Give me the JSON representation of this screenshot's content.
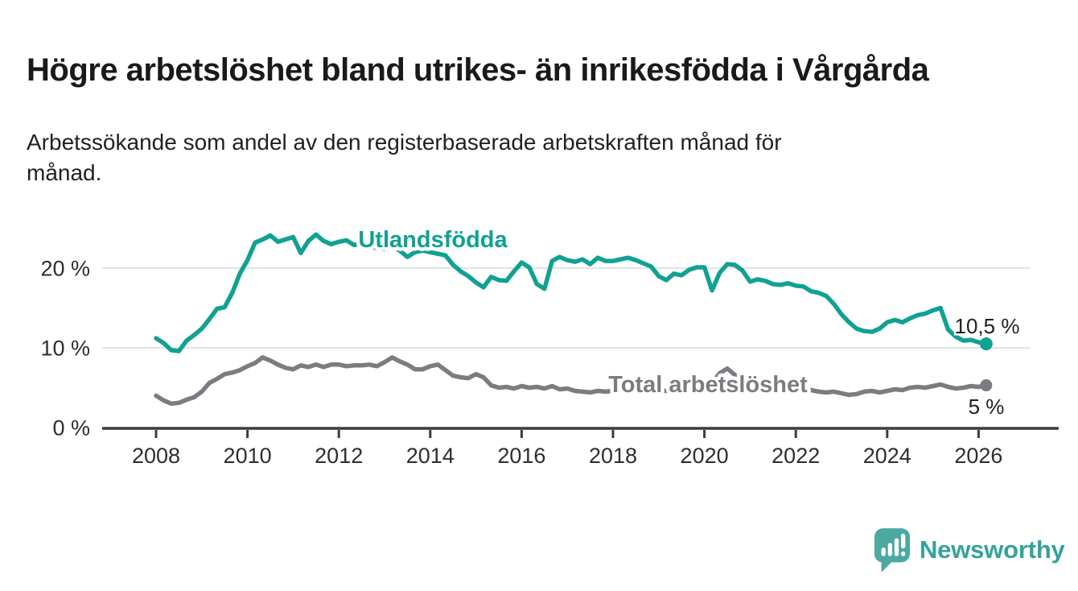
{
  "header": {
    "title": "Högre arbetslöshet bland utrikes- än inrikesfödda i Vårgårda",
    "subtitle": "Arbetssökande som andel av den registerbaserade arbetskraften månad för\nmånad."
  },
  "chart_data": {
    "type": "line",
    "title": "Högre arbetslöshet bland utrikes- än inrikesfödda i Vårgårda",
    "subtitle": "Arbetssökande som andel av den registerbaserade arbetskraften månad för månad.",
    "unit": "%",
    "grid": "horizontal",
    "legend_position": "inline-labels",
    "x_axis": {
      "tick_values": [
        2008,
        2010,
        2012,
        2014,
        2016,
        2018,
        2020,
        2022,
        2024,
        2026
      ],
      "tick_labels": [
        "2008",
        "2010",
        "2012",
        "2014",
        "2016",
        "2018",
        "2020",
        "2022",
        "2024",
        "2026"
      ],
      "range": [
        2006.8,
        2027.8
      ]
    },
    "y_axis": {
      "ticks": [
        {
          "value": 20,
          "label": "20 %"
        },
        {
          "value": 10,
          "label": "10 %"
        },
        {
          "value": 0,
          "label": "0 %"
        }
      ],
      "range": [
        0,
        26
      ]
    },
    "sampling": {
      "start_year": 2008,
      "start_month": 1,
      "interval_months": 2
    },
    "series": [
      {
        "name": "Utlandsfödda",
        "color": "#11a192",
        "end_label": "10,5 %",
        "end_value": 10.5,
        "values": [
          11.2,
          10.6,
          9.7,
          9.6,
          10.9,
          11.6,
          12.4,
          13.6,
          14.9,
          15.1,
          16.9,
          19.3,
          21.0,
          23.2,
          23.6,
          24.1,
          23.3,
          23.6,
          23.9,
          21.9,
          23.4,
          24.2,
          23.4,
          23.0,
          23.3,
          23.5,
          22.9,
          23.1,
          22.8,
          22.5,
          22.4,
          22.7,
          22.2,
          21.4,
          22.0,
          22.2,
          22.0,
          21.8,
          21.6,
          20.4,
          19.6,
          19.0,
          18.2,
          17.6,
          18.9,
          18.5,
          18.4,
          19.6,
          20.7,
          20.1,
          18.0,
          17.4,
          20.9,
          21.4,
          21.0,
          20.8,
          21.1,
          20.5,
          21.3,
          20.9,
          20.9,
          21.1,
          21.3,
          21.0,
          20.6,
          20.2,
          19.0,
          18.5,
          19.3,
          19.1,
          19.8,
          20.1,
          20.1,
          17.2,
          19.4,
          20.5,
          20.4,
          19.7,
          18.3,
          18.6,
          18.4,
          18.0,
          17.9,
          18.1,
          17.8,
          17.7,
          17.1,
          16.9,
          16.5,
          15.5,
          14.2,
          13.2,
          12.4,
          12.1,
          12.0,
          12.4,
          13.2,
          13.5,
          13.2,
          13.7,
          14.1,
          14.3,
          14.7,
          15.0,
          12.3,
          11.4,
          10.9,
          11.0,
          10.7,
          10.5
        ]
      },
      {
        "name": "Total arbetslöshet",
        "color": "#7d7b81",
        "end_label": "5 %",
        "end_value": 5.3,
        "values": [
          4.0,
          3.4,
          3.0,
          3.1,
          3.5,
          3.8,
          4.5,
          5.6,
          6.1,
          6.7,
          6.9,
          7.2,
          7.7,
          8.1,
          8.8,
          8.4,
          7.9,
          7.5,
          7.3,
          7.8,
          7.6,
          7.9,
          7.6,
          7.9,
          7.9,
          7.7,
          7.8,
          7.8,
          7.9,
          7.7,
          8.2,
          8.8,
          8.3,
          7.9,
          7.3,
          7.3,
          7.7,
          7.9,
          7.2,
          6.5,
          6.3,
          6.2,
          6.7,
          6.3,
          5.3,
          5.0,
          5.1,
          4.9,
          5.2,
          5.0,
          5.1,
          4.9,
          5.2,
          4.8,
          4.9,
          4.6,
          4.5,
          4.4,
          4.6,
          4.5,
          4.6,
          4.8,
          4.6,
          4.7,
          4.5,
          4.6,
          4.7,
          4.6,
          4.8,
          4.7,
          4.9,
          5.0,
          5.2,
          5.6,
          6.8,
          7.4,
          6.6,
          5.9,
          5.6,
          5.4,
          5.2,
          5.0,
          4.8,
          4.9,
          5.0,
          4.9,
          4.7,
          4.5,
          4.4,
          4.5,
          4.3,
          4.1,
          4.2,
          4.5,
          4.6,
          4.4,
          4.6,
          4.8,
          4.7,
          5.0,
          5.1,
          5.0,
          5.2,
          5.4,
          5.1,
          4.9,
          5.0,
          5.2,
          5.1,
          5.3
        ]
      }
    ]
  },
  "colors": {
    "accent_teal": "#11a192",
    "series_gray": "#7d7b81",
    "gridline": "#dadada",
    "axis": "#3c3c3c",
    "text_dark": "#1f1f1f"
  },
  "logo": {
    "text": "Newsworthy",
    "icon": "bar-chart-speech-bubble-icon",
    "bubble_color": "#4ba9a2",
    "text_color": "#35a29a"
  }
}
